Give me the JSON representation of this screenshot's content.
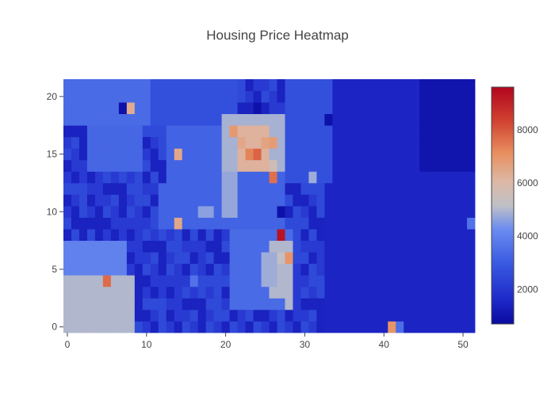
{
  "chart_data": {
    "type": "heatmap",
    "title": "Housing Price Heatmap",
    "xlabel": "",
    "ylabel": "",
    "x_range": [
      -0.5,
      51.5
    ],
    "y_range": [
      -0.5,
      21.5
    ],
    "x_ticks": [
      0,
      10,
      20,
      30,
      40,
      50
    ],
    "y_ticks": [
      0,
      5,
      10,
      15,
      20
    ],
    "n_cols": 52,
    "n_rows": 22,
    "z_range": [
      700,
      9600
    ],
    "colorscale": [
      [
        0.0,
        "#0a0aa0"
      ],
      [
        0.1,
        "#1e28c8"
      ],
      [
        0.25,
        "#3758e0"
      ],
      [
        0.4,
        "#6b8cf0"
      ],
      [
        0.5,
        "#bfc0c6"
      ],
      [
        0.6,
        "#dcb8a6"
      ],
      [
        0.72,
        "#e89060"
      ],
      [
        0.86,
        "#d04030"
      ],
      [
        1.0,
        "#b2051f"
      ]
    ],
    "colorbar_ticks": [
      2000,
      4000,
      6000,
      8000
    ],
    "base_levels": [
      2500,
      2100,
      1400
    ],
    "regions": [
      {
        "x": [
          0,
          8
        ],
        "y": [
          0,
          4
        ],
        "value": 5000
      },
      {
        "x": [
          0,
          7
        ],
        "y": [
          5,
          7
        ],
        "value": 4000
      },
      {
        "x": [
          0,
          10
        ],
        "y": [
          18,
          21
        ],
        "value": 3400
      },
      {
        "x": [
          3,
          9
        ],
        "y": [
          14,
          17
        ],
        "value": 3300
      },
      {
        "x": [
          11,
          21
        ],
        "y": [
          18,
          21
        ],
        "value": 2700
      },
      {
        "x": [
          12,
          27
        ],
        "y": [
          9,
          12
        ],
        "value": 3200
      },
      {
        "x": [
          13,
          28
        ],
        "y": [
          13,
          17
        ],
        "value": 3200
      },
      {
        "x": [
          21,
          28
        ],
        "y": [
          2,
          8
        ],
        "value": 3400
      },
      {
        "x": [
          26,
          28
        ],
        "y": [
          3,
          7
        ],
        "value": 5000
      },
      {
        "x": [
          25,
          26
        ],
        "y": [
          4,
          6
        ],
        "value": 4800
      },
      {
        "x": [
          20,
          27
        ],
        "y": [
          14,
          18
        ],
        "value": 4900
      },
      {
        "x": [
          22,
          25
        ],
        "y": [
          14,
          17
        ],
        "value": 6200
      },
      {
        "x": [
          20,
          21
        ],
        "y": [
          10,
          13
        ],
        "value": 4700
      },
      {
        "x": [
          33,
          51
        ],
        "y": [
          0,
          21
        ],
        "value": 1500
      },
      {
        "x": [
          45,
          51
        ],
        "y": [
          14,
          21
        ],
        "value": 1000
      },
      {
        "x": [
          28,
          33
        ],
        "y": [
          13,
          21
        ],
        "value": 2700
      }
    ],
    "hotspots": [
      {
        "x": 8,
        "y": 19,
        "value": 6400
      },
      {
        "x": 7,
        "y": 19,
        "value": 900
      },
      {
        "x": 21,
        "y": 17,
        "value": 6900
      },
      {
        "x": 22,
        "y": 16,
        "value": 6500
      },
      {
        "x": 23,
        "y": 15,
        "value": 7300
      },
      {
        "x": 24,
        "y": 15,
        "value": 7800
      },
      {
        "x": 25,
        "y": 16,
        "value": 6600
      },
      {
        "x": 26,
        "y": 16,
        "value": 6800
      },
      {
        "x": 26,
        "y": 14,
        "value": 5600
      },
      {
        "x": 26,
        "y": 13,
        "value": 7600
      },
      {
        "x": 14,
        "y": 15,
        "value": 6500
      },
      {
        "x": 14,
        "y": 9,
        "value": 6500
      },
      {
        "x": 27,
        "y": 8,
        "value": 9300
      },
      {
        "x": 28,
        "y": 6,
        "value": 7000
      },
      {
        "x": 27,
        "y": 6,
        "value": 5200
      },
      {
        "x": 5,
        "y": 4,
        "value": 7700
      },
      {
        "x": 41,
        "y": 0,
        "value": 7000
      },
      {
        "x": 42,
        "y": 0,
        "value": 3500
      },
      {
        "x": 27,
        "y": 10,
        "value": 900
      },
      {
        "x": 31,
        "y": 13,
        "value": 4800
      },
      {
        "x": 28,
        "y": 2,
        "value": 5000
      },
      {
        "x": 24,
        "y": 19,
        "value": 900
      },
      {
        "x": 17,
        "y": 10,
        "value": 4600
      },
      {
        "x": 18,
        "y": 10,
        "value": 4600
      },
      {
        "x": 51,
        "y": 9,
        "value": 3600
      },
      {
        "x": 16,
        "y": 4,
        "value": 3600
      },
      {
        "x": 33,
        "y": 18,
        "value": 900
      }
    ]
  }
}
